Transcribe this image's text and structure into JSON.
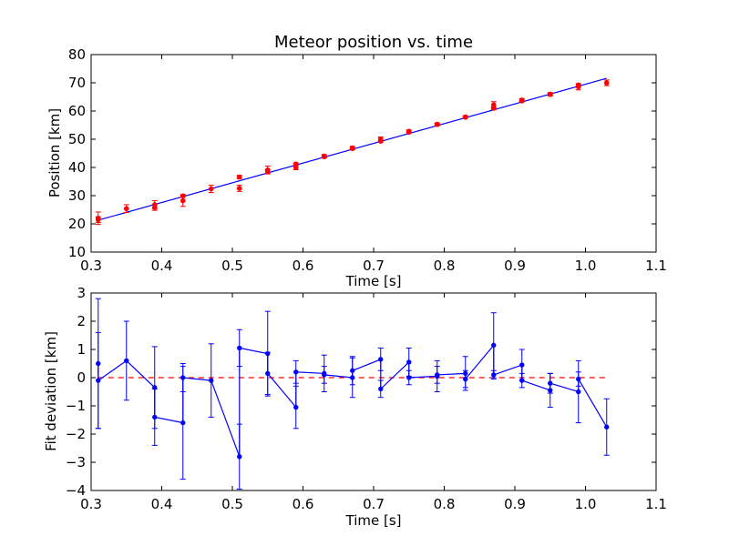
{
  "chart_data": [
    {
      "type": "scatter",
      "title": "Meteor position vs. time",
      "xlabel": "Time [s]",
      "ylabel": "Position [km]",
      "xlim": [
        0.3,
        1.1
      ],
      "ylim": [
        10,
        80
      ],
      "xticks": [
        "0.3",
        "0.4",
        "0.5",
        "0.6",
        "0.7",
        "0.8",
        "0.9",
        "1.0",
        "1.1"
      ],
      "yticks": [
        "10",
        "20",
        "30",
        "40",
        "50",
        "60",
        "70",
        "80"
      ],
      "grid": false,
      "colors": {
        "points": "#ff0000",
        "errorbars": "#ff0000",
        "fit": "#0000ff"
      },
      "fit_line": {
        "x": [
          0.31,
          1.03
        ],
        "y": [
          21.3,
          71.6
        ]
      },
      "series": [
        {
          "x": [
            0.31,
            0.31,
            0.35,
            0.39,
            0.39,
            0.43,
            0.43,
            0.47,
            0.51,
            0.51,
            0.55,
            0.55,
            0.59,
            0.59,
            0.63,
            0.63,
            0.67,
            0.67,
            0.71,
            0.71,
            0.75,
            0.75,
            0.79,
            0.79,
            0.83,
            0.83,
            0.87,
            0.87,
            0.91,
            0.91,
            0.95,
            0.95,
            0.99,
            0.99,
            1.03
          ],
          "y": [
            22.0,
            21.5,
            25.4,
            26.8,
            25.8,
            28.2,
            29.9,
            32.4,
            32.6,
            36.6,
            39.1,
            38.5,
            40.0,
            41.2,
            44.0,
            43.8,
            46.9,
            46.7,
            50.1,
            49.3,
            52.8,
            52.5,
            55.3,
            55.2,
            57.9,
            57.8,
            62.2,
            61.0,
            63.9,
            63.6,
            65.9,
            66.0,
            68.6,
            69.2,
            70.0
          ],
          "yerr": [
            2.2,
            1.0,
            1.4,
            1.4,
            1.0,
            2.0,
            0.5,
            1.3,
            1.1,
            0.6,
            1.4,
            0.7,
            0.8,
            0.4,
            0.6,
            0.3,
            0.6,
            0.3,
            0.7,
            0.3,
            0.5,
            0.3,
            0.5,
            0.3,
            0.4,
            0.3,
            1.1,
            0.5,
            0.5,
            0.3,
            0.6,
            0.3,
            1.1,
            0.4,
            1.0
          ]
        }
      ]
    },
    {
      "type": "line",
      "title": "",
      "xlabel": "Time [s]",
      "ylabel": "Fit deviation [km]",
      "xlim": [
        0.3,
        1.1
      ],
      "ylim": [
        -4,
        3
      ],
      "xticks": [
        "0.3",
        "0.4",
        "0.5",
        "0.6",
        "0.7",
        "0.8",
        "0.9",
        "1.0",
        "1.1"
      ],
      "yticks": [
        "−4",
        "−3",
        "−2",
        "−1",
        "0",
        "1",
        "2",
        "3"
      ],
      "grid": false,
      "colors": {
        "line": "#0000ff",
        "errorbars": "#0000ff",
        "zero_line": "#ff0000"
      },
      "reference_line": {
        "y": 0,
        "style": "dashed"
      },
      "series": [
        {
          "x": [
            0.31,
            0.31,
            0.35,
            0.39,
            0.39,
            0.43,
            0.43,
            0.47,
            0.51,
            0.51,
            0.55,
            0.55,
            0.59,
            0.59,
            0.63,
            0.63,
            0.67,
            0.67,
            0.71,
            0.71,
            0.75,
            0.75,
            0.79,
            0.79,
            0.83,
            0.83,
            0.87,
            0.87,
            0.91,
            0.91,
            0.95,
            0.95,
            0.99,
            0.99,
            1.03
          ],
          "y": [
            0.5,
            -0.1,
            0.6,
            -0.35,
            -1.4,
            -1.6,
            0.0,
            -0.1,
            -2.8,
            1.05,
            0.85,
            0.15,
            -1.05,
            0.2,
            0.15,
            0.1,
            0.0,
            0.25,
            0.65,
            -0.4,
            0.55,
            0.0,
            0.05,
            0.1,
            0.15,
            -0.05,
            1.15,
            0.1,
            0.45,
            -0.1,
            -0.45,
            -0.2,
            -0.5,
            -0.05,
            -1.75
          ],
          "yerr": [
            2.3,
            1.7,
            1.4,
            1.45,
            1.0,
            2.0,
            0.5,
            1.3,
            1.15,
            0.65,
            1.5,
            0.75,
            0.75,
            0.4,
            0.65,
            0.3,
            0.7,
            0.5,
            0.4,
            0.3,
            0.5,
            0.25,
            0.55,
            0.3,
            0.6,
            0.3,
            1.15,
            0.15,
            0.55,
            0.25,
            0.6,
            0.35,
            1.1,
            0.25,
            1.0
          ]
        }
      ]
    }
  ]
}
